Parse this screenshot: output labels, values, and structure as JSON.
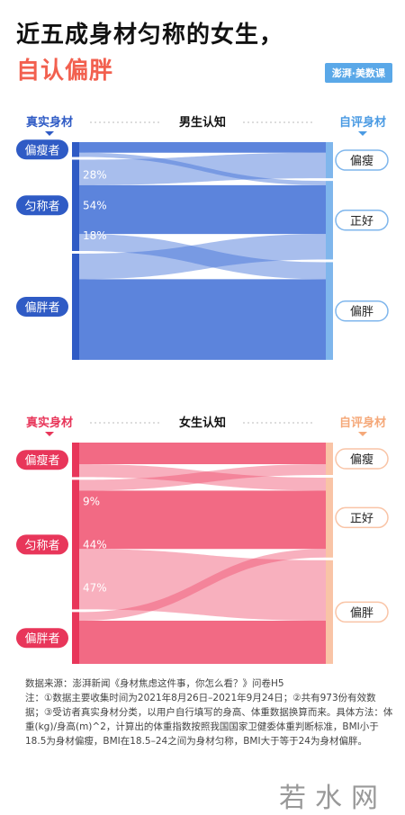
{
  "header": {
    "title_line1": "近五成身材匀称的女生，",
    "title_line2": "自认偏胖",
    "brand": "澎湃·美数课"
  },
  "chart_data": [
    {
      "type": "sankey",
      "title": "男生认知",
      "left_label": "真实身材",
      "right_label": "自评身材",
      "left_nodes": [
        "偏瘦者",
        "匀称者",
        "偏胖者"
      ],
      "right_nodes": [
        "偏瘦",
        "正好",
        "偏胖"
      ],
      "flow_labels": [
        "28%",
        "54%",
        "18%"
      ],
      "flows": [
        {
          "from": "偏瘦者",
          "to": "偏瘦",
          "value": 0.05
        },
        {
          "from": "偏瘦者",
          "to": "正好",
          "value": 0.02
        },
        {
          "from": "匀称者",
          "to": "偏瘦",
          "value": 0.12
        },
        {
          "from": "匀称者",
          "to": "正好",
          "value": 0.23
        },
        {
          "from": "匀称者",
          "to": "偏胖",
          "value": 0.08
        },
        {
          "from": "偏胖者",
          "to": "正好",
          "value": 0.12
        },
        {
          "from": "偏胖者",
          "to": "偏胖",
          "value": 0.38
        }
      ],
      "colors": {
        "left_bar": "#2f5bc5",
        "flow": "#3f6fd6",
        "right_bar": "#7fb6ec",
        "label": "#2f5bc5",
        "accent": "#4b9be3"
      }
    },
    {
      "type": "sankey",
      "title": "女生认知",
      "left_label": "真实身材",
      "right_label": "自评身材",
      "left_nodes": [
        "偏瘦者",
        "匀称者",
        "偏胖者"
      ],
      "right_nodes": [
        "偏瘦",
        "正好",
        "偏胖"
      ],
      "flow_labels": [
        "9%",
        "44%",
        "47%"
      ],
      "flows": [
        {
          "from": "偏瘦者",
          "to": "偏瘦",
          "value": 0.1
        },
        {
          "from": "偏瘦者",
          "to": "正好",
          "value": 0.06
        },
        {
          "from": "匀称者",
          "to": "偏瘦",
          "value": 0.05
        },
        {
          "from": "匀称者",
          "to": "正好",
          "value": 0.27
        },
        {
          "from": "匀称者",
          "to": "偏胖",
          "value": 0.28
        },
        {
          "from": "偏胖者",
          "to": "正好",
          "value": 0.04
        },
        {
          "from": "偏胖者",
          "to": "偏胖",
          "value": 0.2
        }
      ],
      "colors": {
        "left_bar": "#e8365a",
        "flow": "#f0506e",
        "right_bar": "#f9c4a6",
        "label": "#e8365a",
        "accent": "#f5a97a"
      }
    }
  ],
  "source": {
    "line1": "数据来源：澎湃新闻《身材焦虑这件事，你怎么看？》问卷H5",
    "line2": "注：①数据主要收集时间为2021年8月26日–2021年9月24日；②共有973份有效数据；③受访者真实身材分类，以用户自行填写的身高、体重数据换算而来。具体方法：体重(kg)/身高(m)^2，计算出的体重指数按照我国国家卫健委体重判断标准，BMI小于18.5为身材偏瘦，BMI在18.5–24之间为身材匀称，BMI大于等于24为身材偏胖。"
  },
  "watermark": "若水网"
}
